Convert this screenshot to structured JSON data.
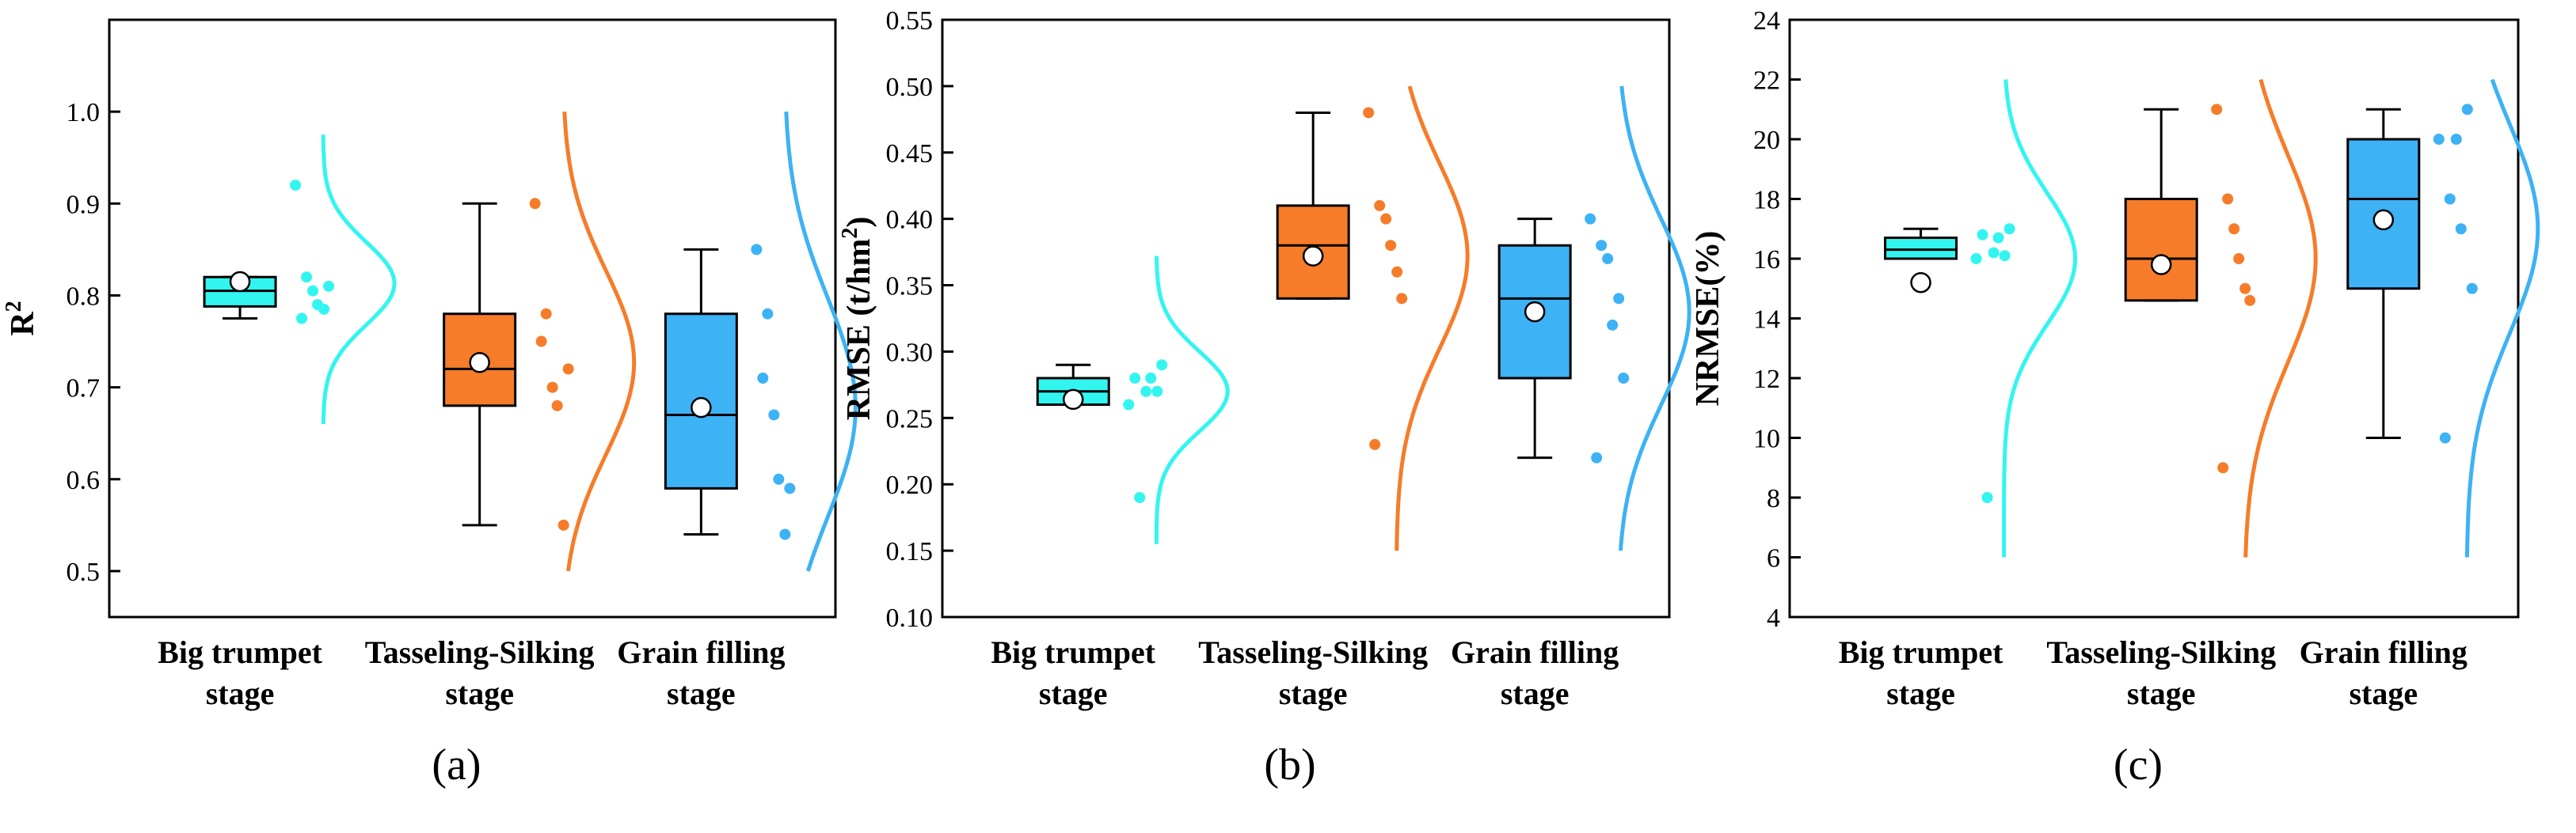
{
  "colors": {
    "big_trumpet": "#33F5F0",
    "tasseling_silking": "#F67C29",
    "grain_filling": "#3DB2F5"
  },
  "chart_data": [
    {
      "type": "box",
      "panel_label": "(a)",
      "ylabel_main": "R",
      "ylabel_sup": "2",
      "ylabel_after": "",
      "ylim": [
        0.45,
        1.1
      ],
      "yticks": [
        "0.5",
        "0.6",
        "0.7",
        "0.8",
        "0.9",
        "1.0"
      ],
      "ytick_values": [
        0.5,
        0.6,
        0.7,
        0.8,
        0.9,
        1.0
      ],
      "categories": [
        {
          "line1": "Big trumpet",
          "line2": "stage"
        },
        {
          "line1": "Tasseling-Silking",
          "line2": "stage"
        },
        {
          "line1": "Grain filling",
          "line2": "stage"
        }
      ],
      "series": [
        {
          "name": "Big trumpet stage",
          "color_key": "big_trumpet",
          "min": 0.775,
          "q1": 0.788,
          "median": 0.805,
          "q3": 0.82,
          "max": 0.82,
          "mean": 0.815,
          "points": [
            0.92,
            0.82,
            0.79,
            0.81,
            0.775,
            0.805,
            0.785
          ],
          "curve_range": [
            0.66,
            0.975
          ],
          "curve_mean": 0.813,
          "curve_sd": 0.045
        },
        {
          "name": "Tasseling-Silking stage",
          "color_key": "tasseling_silking",
          "min": 0.55,
          "q1": 0.68,
          "median": 0.72,
          "q3": 0.78,
          "max": 0.9,
          "mean": 0.727,
          "points": [
            0.9,
            0.78,
            0.68,
            0.72,
            0.75,
            0.7,
            0.55
          ],
          "curve_range": [
            0.5,
            1.0
          ],
          "curve_mean": 0.727,
          "curve_sd": 0.1
        },
        {
          "name": "Grain filling stage",
          "color_key": "grain_filling",
          "min": 0.54,
          "q1": 0.59,
          "median": 0.67,
          "q3": 0.78,
          "max": 0.85,
          "mean": 0.678,
          "points": [
            0.85,
            0.78,
            0.6,
            0.59,
            0.71,
            0.67,
            0.54
          ],
          "curve_range": [
            0.5,
            1.0
          ],
          "curve_mean": 0.678,
          "curve_sd": 0.12
        }
      ]
    },
    {
      "type": "box",
      "panel_label": "(b)",
      "ylabel_main": "RMSE (t/hm",
      "ylabel_sup": "2",
      "ylabel_after": ")",
      "ylim": [
        0.1,
        0.55
      ],
      "yticks": [
        "0.10",
        "0.15",
        "0.20",
        "0.25",
        "0.30",
        "0.35",
        "0.40",
        "0.45",
        "0.50",
        "0.55"
      ],
      "ytick_values": [
        0.1,
        0.15,
        0.2,
        0.25,
        0.3,
        0.35,
        0.4,
        0.45,
        0.5,
        0.55
      ],
      "categories": [
        {
          "line1": "Big trumpet",
          "line2": "stage"
        },
        {
          "line1": "Tasseling-Silking",
          "line2": "stage"
        },
        {
          "line1": "Grain filling",
          "line2": "stage"
        }
      ],
      "series": [
        {
          "name": "Big trumpet stage",
          "color_key": "big_trumpet",
          "min": 0.26,
          "q1": 0.26,
          "median": 0.27,
          "q3": 0.28,
          "max": 0.29,
          "mean": 0.264,
          "points": [
            0.26,
            0.19,
            0.28,
            0.29,
            0.28,
            0.27,
            0.27
          ],
          "curve_range": [
            0.155,
            0.372
          ],
          "curve_mean": 0.27,
          "curve_sd": 0.03
        },
        {
          "name": "Tasseling-Silking stage",
          "color_key": "tasseling_silking",
          "min": 0.34,
          "q1": 0.34,
          "median": 0.38,
          "q3": 0.41,
          "max": 0.48,
          "mean": 0.372,
          "points": [
            0.48,
            0.41,
            0.38,
            0.34,
            0.23,
            0.4,
            0.36
          ],
          "curve_range": [
            0.15,
            0.5
          ],
          "curve_mean": 0.372,
          "curve_sd": 0.07
        },
        {
          "name": "Grain filling stage",
          "color_key": "grain_filling",
          "min": 0.22,
          "q1": 0.28,
          "median": 0.34,
          "q3": 0.38,
          "max": 0.4,
          "mean": 0.33,
          "points": [
            0.4,
            0.38,
            0.32,
            0.28,
            0.22,
            0.37,
            0.34
          ],
          "curve_range": [
            0.15,
            0.5
          ],
          "curve_mean": 0.33,
          "curve_sd": 0.07
        }
      ]
    },
    {
      "type": "box",
      "panel_label": "(c)",
      "ylabel_main": "NRMSE(%)",
      "ylabel_sup": "",
      "ylabel_after": "",
      "ylim": [
        4,
        24
      ],
      "yticks": [
        "4",
        "6",
        "8",
        "10",
        "12",
        "14",
        "16",
        "18",
        "20",
        "22",
        "24"
      ],
      "ytick_values": [
        4,
        6,
        8,
        10,
        12,
        14,
        16,
        18,
        20,
        22,
        24
      ],
      "categories": [
        {
          "line1": "Big trumpet",
          "line2": "stage"
        },
        {
          "line1": "Tasseling-Silking",
          "line2": "stage"
        },
        {
          "line1": "Grain filling",
          "line2": "stage"
        }
      ],
      "series": [
        {
          "name": "Big trumpet stage",
          "color_key": "big_trumpet",
          "min": 16.0,
          "q1": 16.0,
          "median": 16.3,
          "q3": 16.7,
          "max": 17.0,
          "mean": 15.2,
          "points": [
            16.0,
            8.0,
            16.7,
            17.0,
            16.8,
            16.2,
            16.1
          ],
          "curve_range": [
            6,
            22
          ],
          "curve_mean": 16.0,
          "curve_sd": 2.2
        },
        {
          "name": "Tasseling-Silking stage",
          "color_key": "tasseling_silking",
          "min": 14.6,
          "q1": 14.6,
          "median": 16.0,
          "q3": 18.0,
          "max": 21.0,
          "mean": 15.8,
          "points": [
            21.0,
            18.0,
            16.0,
            14.6,
            9.0,
            17.0,
            15.0
          ],
          "curve_range": [
            6,
            22
          ],
          "curve_mean": 16.0,
          "curve_sd": 3.5
        },
        {
          "name": "Grain filling stage",
          "color_key": "grain_filling",
          "min": 10.0,
          "q1": 15.0,
          "median": 18.0,
          "q3": 20.0,
          "max": 21.0,
          "mean": 17.3,
          "points": [
            20.0,
            18.0,
            17.0,
            15.0,
            10.0,
            20.0,
            21.0
          ],
          "curve_range": [
            6,
            22
          ],
          "curve_mean": 17.0,
          "curve_sd": 3.5
        }
      ]
    }
  ]
}
